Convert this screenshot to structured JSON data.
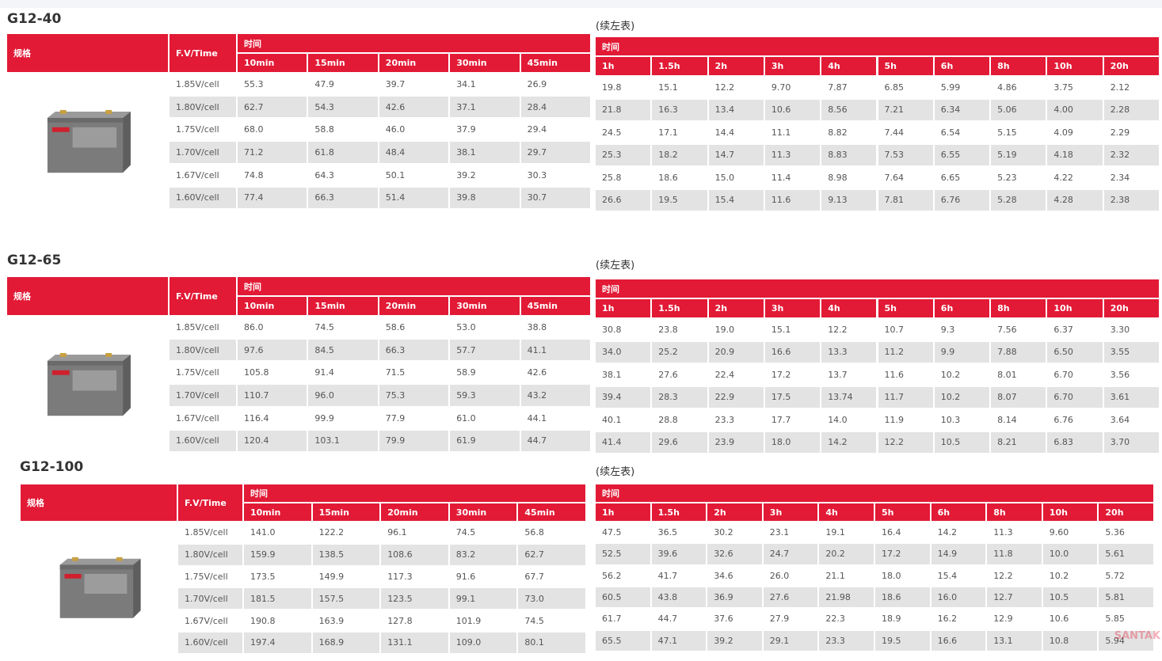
{
  "watermark": "SANTAK",
  "sections": [
    {
      "title": "G12-40",
      "left": {
        "spec_label": "规格",
        "fv_label": "F.V/Time",
        "time_label": "时间",
        "columns": [
          "10min",
          "15min",
          "20min",
          "30min",
          "45min"
        ],
        "rows": [
          {
            "fv": "1.85V/cell",
            "values": [
              "55.3",
              "47.9",
              "39.7",
              "34.1",
              "26.9"
            ]
          },
          {
            "fv": "1.80V/cell",
            "values": [
              "62.7",
              "54.3",
              "42.6",
              "37.1",
              "28.4"
            ]
          },
          {
            "fv": "1.75V/cell",
            "values": [
              "68.0",
              "58.8",
              "46.0",
              "37.9",
              "29.4"
            ]
          },
          {
            "fv": "1.70V/cell",
            "values": [
              "71.2",
              "61.8",
              "48.4",
              "38.1",
              "29.7"
            ]
          },
          {
            "fv": "1.67V/cell",
            "values": [
              "74.8",
              "64.3",
              "50.1",
              "39.2",
              "30.3"
            ]
          },
          {
            "fv": "1.60V/cell",
            "values": [
              "77.4",
              "66.3",
              "51.4",
              "39.8",
              "30.7"
            ]
          }
        ]
      },
      "right": {
        "note": "(续左表)",
        "time_label": "时间",
        "columns": [
          "1h",
          "1.5h",
          "2h",
          "3h",
          "4h",
          "5h",
          "6h",
          "8h",
          "10h",
          "20h"
        ],
        "rows": [
          [
            "19.8",
            "15.1",
            "12.2",
            "9.70",
            "7.87",
            "6.85",
            "5.99",
            "4.86",
            "3.75",
            "2.12"
          ],
          [
            "21.8",
            "16.3",
            "13.4",
            "10.6",
            "8.56",
            "7.21",
            "6.34",
            "5.06",
            "4.00",
            "2.28"
          ],
          [
            "24.5",
            "17.1",
            "14.4",
            "11.1",
            "8.82",
            "7.44",
            "6.54",
            "5.15",
            "4.09",
            "2.29"
          ],
          [
            "25.3",
            "18.2",
            "14.7",
            "11.3",
            "8.83",
            "7.53",
            "6.55",
            "5.19",
            "4.18",
            "2.32"
          ],
          [
            "25.8",
            "18.6",
            "15.0",
            "11.4",
            "8.98",
            "7.64",
            "6.65",
            "5.23",
            "4.22",
            "2.34"
          ],
          [
            "26.6",
            "19.5",
            "15.4",
            "11.6",
            "9.13",
            "7.81",
            "6.76",
            "5.28",
            "4.28",
            "2.38"
          ]
        ]
      }
    },
    {
      "title": "G12-65",
      "left": {
        "spec_label": "规格",
        "fv_label": "F.V/Time",
        "time_label": "时间",
        "columns": [
          "10min",
          "15min",
          "20min",
          "30min",
          "45min"
        ],
        "rows": [
          {
            "fv": "1.85V/cell",
            "values": [
              "86.0",
              "74.5",
              "58.6",
              "53.0",
              "38.8"
            ]
          },
          {
            "fv": "1.80V/cell",
            "values": [
              "97.6",
              "84.5",
              "66.3",
              "57.7",
              "41.1"
            ]
          },
          {
            "fv": "1.75V/cell",
            "values": [
              "105.8",
              "91.4",
              "71.5",
              "58.9",
              "42.6"
            ]
          },
          {
            "fv": "1.70V/cell",
            "values": [
              "110.7",
              "96.0",
              "75.3",
              "59.3",
              "43.2"
            ]
          },
          {
            "fv": "1.67V/cell",
            "values": [
              "116.4",
              "99.9",
              "77.9",
              "61.0",
              "44.1"
            ]
          },
          {
            "fv": "1.60V/cell",
            "values": [
              "120.4",
              "103.1",
              "79.9",
              "61.9",
              "44.7"
            ]
          }
        ]
      },
      "right": {
        "note": "(续左表)",
        "time_label": "时间",
        "columns": [
          "1h",
          "1.5h",
          "2h",
          "3h",
          "4h",
          "5h",
          "6h",
          "8h",
          "10h",
          "20h"
        ],
        "rows": [
          [
            "30.8",
            "23.8",
            "19.0",
            "15.1",
            "12.2",
            "10.7",
            "9.3",
            "7.56",
            "6.37",
            "3.30"
          ],
          [
            "34.0",
            "25.2",
            "20.9",
            "16.6",
            "13.3",
            "11.2",
            "9.9",
            "7.88",
            "6.50",
            "3.55"
          ],
          [
            "38.1",
            "27.6",
            "22.4",
            "17.2",
            "13.7",
            "11.6",
            "10.2",
            "8.01",
            "6.70",
            "3.56"
          ],
          [
            "39.4",
            "28.3",
            "22.9",
            "17.5",
            "13.74",
            "11.7",
            "10.2",
            "8.07",
            "6.70",
            "3.61"
          ],
          [
            "40.1",
            "28.8",
            "23.3",
            "17.7",
            "14.0",
            "11.9",
            "10.3",
            "8.14",
            "6.76",
            "3.64"
          ],
          [
            "41.4",
            "29.6",
            "23.9",
            "18.0",
            "14.2",
            "12.2",
            "10.5",
            "8.21",
            "6.83",
            "3.70"
          ]
        ]
      }
    },
    {
      "title": "G12-100",
      "left": {
        "spec_label": "规格",
        "fv_label": "F.V/Time",
        "time_label": "时间",
        "columns": [
          "10min",
          "15min",
          "20min",
          "30min",
          "45min"
        ],
        "rows": [
          {
            "fv": "1.85V/cell",
            "values": [
              "141.0",
              "122.2",
              "96.1",
              "74.5",
              "56.8"
            ]
          },
          {
            "fv": "1.80V/cell",
            "values": [
              "159.9",
              "138.5",
              "108.6",
              "83.2",
              "62.7"
            ]
          },
          {
            "fv": "1.75V/cell",
            "values": [
              "173.5",
              "149.9",
              "117.3",
              "91.6",
              "67.7"
            ]
          },
          {
            "fv": "1.70V/cell",
            "values": [
              "181.5",
              "157.5",
              "123.5",
              "99.1",
              "73.0"
            ]
          },
          {
            "fv": "1.67V/cell",
            "values": [
              "190.8",
              "163.9",
              "127.8",
              "101.9",
              "74.5"
            ]
          },
          {
            "fv": "1.60V/cell",
            "values": [
              "197.4",
              "168.9",
              "131.1",
              "109.0",
              "80.1"
            ]
          }
        ]
      },
      "right": {
        "note": "(续左表)",
        "time_label": "时间",
        "columns": [
          "1h",
          "1.5h",
          "2h",
          "3h",
          "4h",
          "5h",
          "6h",
          "8h",
          "10h",
          "20h"
        ],
        "rows": [
          [
            "47.5",
            "36.5",
            "30.2",
            "23.1",
            "19.1",
            "16.4",
            "14.2",
            "11.3",
            "9.60",
            "5.36"
          ],
          [
            "52.5",
            "39.6",
            "32.6",
            "24.7",
            "20.2",
            "17.2",
            "14.9",
            "11.8",
            "10.0",
            "5.61"
          ],
          [
            "56.2",
            "41.7",
            "34.6",
            "26.0",
            "21.1",
            "18.0",
            "15.4",
            "12.2",
            "10.2",
            "5.72"
          ],
          [
            "60.5",
            "43.8",
            "36.9",
            "27.6",
            "21.98",
            "18.6",
            "16.0",
            "12.7",
            "10.5",
            "5.81"
          ],
          [
            "61.7",
            "44.7",
            "37.6",
            "27.9",
            "22.3",
            "18.9",
            "16.2",
            "12.9",
            "10.6",
            "5.85"
          ],
          [
            "65.5",
            "47.1",
            "39.2",
            "29.1",
            "23.3",
            "19.5",
            "16.6",
            "13.1",
            "10.8",
            "5.94"
          ]
        ]
      }
    }
  ]
}
